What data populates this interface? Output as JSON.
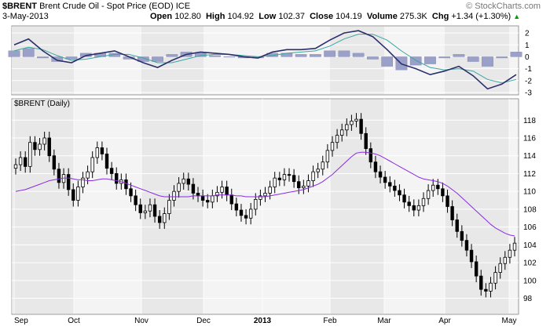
{
  "header": {
    "symbol": "$BRENT",
    "name": "Brent Crude Oil - Spot Price (EOD)",
    "exchange": "ICE",
    "watermark": "© StockCharts.com",
    "date": "3-May-2013",
    "open_label": "Open",
    "open": "102.80",
    "high_label": "High",
    "high": "104.92",
    "low_label": "Low",
    "low": "102.37",
    "close_label": "Close",
    "close": "104.19",
    "volume_label": "Volume",
    "volume": "275.3K",
    "chg_label": "Chg",
    "chg": "+1.34 (+1.30%)",
    "chg_arrow": "up-arrow-icon"
  },
  "main_panel_label": "$BRENT (Daily)",
  "colors": {
    "candle": "#000000",
    "ma_line": "#8a2be2",
    "macd_line": "#2b2f6b",
    "signal_line": "#3aa5a0",
    "histogram": "#9aa0c8",
    "panel_bg": "#f4f4f4",
    "shade": "#e8e8e8",
    "grid": "#ffffff",
    "chg_up": "#00a000"
  },
  "chart_data": [
    {
      "type": "line",
      "title": "",
      "x": [
        "2012-08-29",
        "2012-09-05",
        "2012-09-12",
        "2012-09-19",
        "2012-09-26",
        "2012-10-03",
        "2012-10-10",
        "2012-10-17",
        "2012-10-24",
        "2012-10-31",
        "2012-11-07",
        "2012-11-14",
        "2012-11-21",
        "2012-11-28",
        "2012-12-05",
        "2012-12-12",
        "2012-12-19",
        "2012-12-26",
        "2013-01-02",
        "2013-01-09",
        "2013-01-16",
        "2013-01-23",
        "2013-01-30",
        "2013-02-06",
        "2013-02-13",
        "2013-02-20",
        "2013-02-27",
        "2013-03-06",
        "2013-03-13",
        "2013-03-20",
        "2013-03-27",
        "2013-04-03",
        "2013-04-10",
        "2013-04-17",
        "2013-04-24",
        "2013-05-01"
      ],
      "series": [
        {
          "values": [
            1.0,
            1.5,
            0.5,
            -0.3,
            -0.5,
            0.1,
            0.3,
            0.5,
            0.0,
            -0.5,
            -0.9,
            -0.3,
            0.2,
            0.4,
            0.3,
            0.2,
            0.0,
            -0.1,
            0.4,
            0.6,
            0.6,
            0.7,
            1.4,
            2.0,
            2.2,
            1.7,
            0.6,
            -0.6,
            -1.0,
            -1.5,
            -1.2,
            -0.8,
            -1.6,
            -2.7,
            -2.3,
            -1.5
          ]
        },
        {
          "values": [
            0.5,
            0.8,
            0.6,
            0.1,
            -0.3,
            -0.2,
            0.0,
            0.2,
            0.2,
            -0.1,
            -0.5,
            -0.5,
            -0.2,
            0.1,
            0.2,
            0.2,
            0.1,
            0.0,
            0.1,
            0.3,
            0.4,
            0.5,
            0.9,
            1.5,
            1.9,
            1.9,
            1.4,
            0.5,
            -0.3,
            -0.9,
            -1.1,
            -1.0,
            -1.2,
            -1.9,
            -2.2,
            -1.9
          ]
        }
      ],
      "bar_series": {
        "values": [
          0.5,
          0.7,
          -0.1,
          -0.4,
          -0.2,
          0.3,
          0.3,
          0.3,
          -0.2,
          -0.4,
          -0.4,
          0.2,
          0.4,
          0.3,
          0.1,
          0.0,
          -0.1,
          -0.1,
          0.3,
          0.3,
          0.2,
          0.2,
          0.5,
          0.5,
          0.3,
          -0.2,
          -0.8,
          -1.1,
          -0.7,
          -0.6,
          -0.1,
          0.2,
          -0.4,
          -0.8,
          -0.1,
          0.4
        ]
      },
      "ylim": [
        -3.2,
        2.6
      ],
      "yticks": [
        "2",
        "1",
        "0",
        "-1",
        "-2",
        "-3"
      ],
      "grid": true
    },
    {
      "type": "candlestick",
      "title": "$BRENT (Daily)",
      "x_ticks": [
        "Sep",
        "Oct",
        "Nov",
        "Dec",
        "2013",
        "Feb",
        "Mar",
        "Apr",
        "May"
      ],
      "yticks": [
        "118",
        "116",
        "114",
        "112",
        "110",
        "108",
        "106",
        "104",
        "102",
        "100",
        "98"
      ],
      "ylim": [
        96.2,
        120.4
      ],
      "y_axis_side": "right",
      "grid": true,
      "close": [
        113.0,
        113.8,
        112.8,
        115.5,
        114.7,
        115.3,
        116.0,
        114.0,
        112.5,
        111.0,
        111.9,
        110.2,
        109.0,
        110.5,
        111.5,
        112.2,
        113.8,
        114.9,
        114.2,
        112.6,
        112.0,
        110.9,
        111.3,
        110.3,
        109.5,
        108.5,
        107.6,
        107.8,
        108.5,
        107.2,
        106.5,
        107.5,
        109.0,
        110.0,
        110.9,
        111.4,
        110.8,
        109.8,
        109.5,
        109.0,
        108.8,
        109.5,
        109.9,
        110.5,
        109.6,
        108.6,
        107.9,
        107.3,
        107.0,
        108.0,
        109.1,
        109.5,
        109.8,
        110.5,
        111.5,
        111.3,
        111.9,
        111.8,
        111.1,
        110.4,
        110.6,
        111.2,
        112.2,
        112.5,
        113.3,
        114.6,
        115.5,
        116.3,
        116.9,
        117.5,
        117.9,
        118.1,
        116.5,
        114.8,
        113.3,
        112.2,
        111.6,
        111.0,
        110.6,
        110.1,
        109.6,
        108.8,
        108.4,
        107.9,
        108.4,
        109.2,
        110.1,
        110.7,
        110.3,
        109.5,
        108.3,
        106.8,
        105.5,
        104.5,
        103.4,
        102.1,
        100.5,
        99.0,
        98.8,
        99.7,
        100.9,
        101.9,
        102.6,
        103.4,
        104.19
      ],
      "ma50": [
        110.0,
        110.1,
        110.2,
        110.4,
        110.6,
        110.8,
        111.0,
        111.2,
        111.3,
        111.4,
        111.5,
        111.5,
        111.4,
        111.3,
        111.3,
        111.2,
        111.2,
        111.3,
        111.4,
        111.4,
        111.3,
        111.2,
        111.1,
        110.9,
        110.7,
        110.5,
        110.3,
        110.1,
        109.9,
        109.7,
        109.5,
        109.4,
        109.4,
        109.4,
        109.4,
        109.4,
        109.4,
        109.5,
        109.5,
        109.5,
        109.5,
        109.5,
        109.6,
        109.6,
        109.6,
        109.6,
        109.5,
        109.5,
        109.4,
        109.4,
        109.4,
        109.4,
        109.4,
        109.5,
        109.6,
        109.7,
        109.8,
        109.9,
        110.0,
        110.1,
        110.2,
        110.4,
        110.6,
        110.8,
        111.1,
        111.5,
        111.9,
        112.4,
        112.9,
        113.4,
        113.9,
        114.3,
        114.4,
        114.4,
        114.3,
        114.2,
        114.0,
        113.7,
        113.4,
        113.1,
        112.8,
        112.5,
        112.2,
        111.9,
        111.6,
        111.4,
        111.3,
        111.2,
        111.1,
        110.9,
        110.6,
        110.2,
        109.8,
        109.3,
        108.8,
        108.3,
        107.8,
        107.3,
        106.8,
        106.3,
        105.9,
        105.6,
        105.3,
        105.1,
        105.0
      ]
    }
  ]
}
